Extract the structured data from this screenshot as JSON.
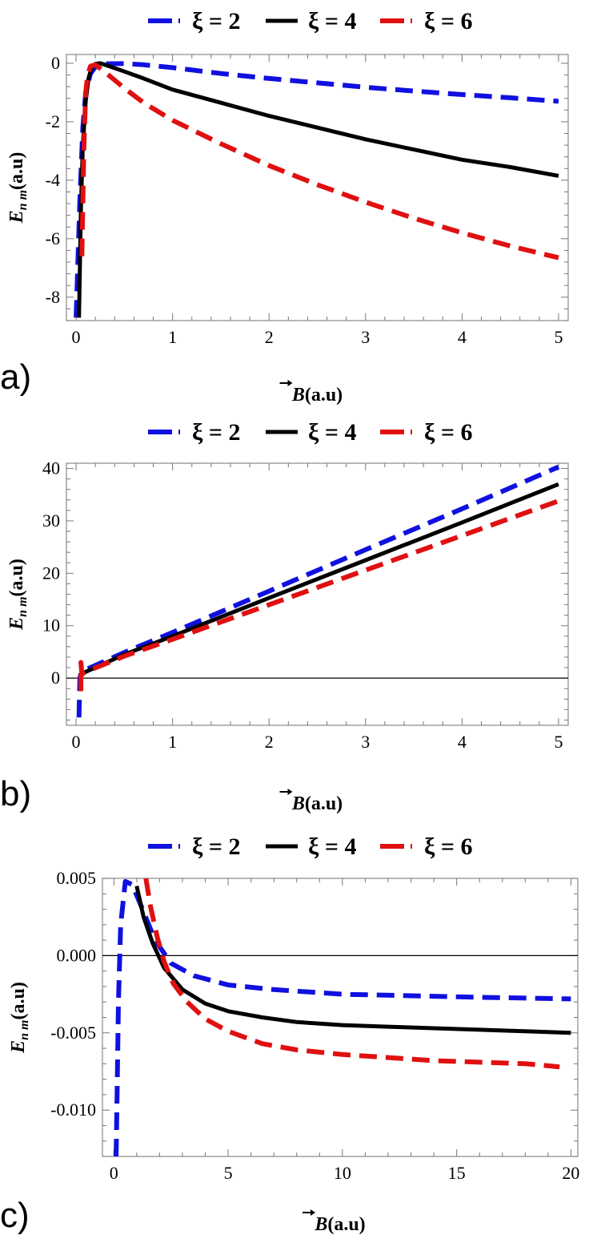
{
  "chart_data": [
    {
      "panel": "a)",
      "type": "line",
      "xlabel": "B(a.u)",
      "xlabel_parts": {
        "main": "B",
        "paren": "(a.u)"
      },
      "ylabel": "Enm(a.u)",
      "ylabel_parts": {
        "main": "E",
        "sub": "n m",
        "paren": "(a.u)"
      },
      "xlim": [
        -0.1,
        5.1
      ],
      "ylim": [
        -8.8,
        0.3
      ],
      "x_ticks": [
        0,
        1,
        2,
        3,
        4,
        5
      ],
      "y_ticks": [
        0,
        -2,
        -4,
        -6,
        -8
      ],
      "x_tick_labels": [
        "0",
        "1",
        "2",
        "3",
        "4",
        "5"
      ],
      "y_tick_labels": [
        "0",
        "-2",
        "-4",
        "-6",
        "-8"
      ],
      "zero_line": false,
      "legend": "top-center",
      "series": [
        {
          "name": "ξ = 2",
          "color": "#1010e0",
          "dash": "dashed",
          "x": [
            0.0,
            0.04,
            0.07,
            0.1,
            0.15,
            0.2,
            0.3,
            0.5,
            0.7,
            1.0,
            1.5,
            2.0,
            2.5,
            3.0,
            3.5,
            4.0,
            4.5,
            5.0
          ],
          "y": [
            -8.7,
            -4.6,
            -2.2,
            -1.0,
            -0.35,
            -0.12,
            -0.02,
            -0.01,
            -0.05,
            -0.15,
            -0.35,
            -0.52,
            -0.67,
            -0.82,
            -0.95,
            -1.07,
            -1.18,
            -1.3
          ]
        },
        {
          "name": "ξ = 4",
          "color": "#000000",
          "dash": "solid",
          "x": [
            0.03,
            0.05,
            0.07,
            0.1,
            0.13,
            0.16,
            0.2,
            0.25,
            0.3,
            0.5,
            0.7,
            1.0,
            1.5,
            2.0,
            2.5,
            3.0,
            3.5,
            4.0,
            4.5,
            5.0
          ],
          "y": [
            -8.7,
            -5.0,
            -2.8,
            -1.3,
            -0.5,
            -0.15,
            -0.02,
            0.0,
            -0.05,
            -0.28,
            -0.52,
            -0.9,
            -1.35,
            -1.8,
            -2.2,
            -2.6,
            -2.95,
            -3.3,
            -3.55,
            -3.85
          ]
        },
        {
          "name": "ξ = 6",
          "color": "#e01010",
          "dash": "dashed",
          "x": [
            0.06,
            0.08,
            0.1,
            0.12,
            0.15,
            0.2,
            0.3,
            0.5,
            0.7,
            1.0,
            1.5,
            2.0,
            2.5,
            3.0,
            3.5,
            4.0,
            4.5,
            5.0
          ],
          "y": [
            -6.6,
            -3.0,
            -1.0,
            -0.4,
            -0.1,
            -0.05,
            -0.3,
            -0.85,
            -1.35,
            -1.95,
            -2.75,
            -3.5,
            -4.15,
            -4.75,
            -5.3,
            -5.8,
            -6.25,
            -6.65
          ]
        }
      ]
    },
    {
      "panel": "b)",
      "type": "line",
      "xlabel": "B(a.u)",
      "xlabel_parts": {
        "main": "B",
        "paren": "(a.u)"
      },
      "ylabel": "Enm(a.u)",
      "ylabel_parts": {
        "main": "E",
        "sub": "n m",
        "paren": "(a.u)"
      },
      "xlim": [
        -0.1,
        5.1
      ],
      "ylim": [
        -9,
        41
      ],
      "x_ticks": [
        0,
        1,
        2,
        3,
        4,
        5
      ],
      "y_ticks": [
        0,
        10,
        20,
        30,
        40
      ],
      "x_tick_labels": [
        "0",
        "1",
        "2",
        "3",
        "4",
        "5"
      ],
      "y_tick_labels": [
        "0",
        "10",
        "20",
        "30",
        "40"
      ],
      "zero_line": true,
      "legend": "top-center",
      "series": [
        {
          "name": "ξ = 2",
          "color": "#1010e0",
          "dash": "dashed",
          "x": [
            0.03,
            0.035,
            0.04,
            0.05,
            0.1,
            0.5,
            1.0,
            2.0,
            3.0,
            4.0,
            5.0
          ],
          "y": [
            -7.5,
            -3.0,
            0.0,
            1.0,
            1.6,
            4.9,
            8.7,
            16.6,
            24.5,
            32.3,
            40.3
          ]
        },
        {
          "name": "ξ = 4",
          "color": "#000000",
          "dash": "solid",
          "x": [
            0.05,
            0.1,
            0.5,
            1.0,
            2.0,
            3.0,
            4.0,
            5.0
          ],
          "y": [
            0.5,
            1.2,
            4.5,
            8.0,
            15.3,
            22.5,
            29.7,
            37.0
          ]
        },
        {
          "name": "ξ = 6",
          "color": "#e01010",
          "dash": "dashed",
          "x": [
            0.05,
            0.05,
            0.06,
            0.1,
            0.5,
            1.0,
            2.0,
            3.0,
            4.0,
            5.0
          ],
          "y": [
            -2.5,
            3.0,
            0.8,
            1.2,
            4.2,
            7.4,
            14.0,
            20.6,
            27.2,
            33.8
          ]
        }
      ]
    },
    {
      "panel": "c)",
      "type": "line",
      "xlabel": "B(a.u)",
      "xlabel_parts": {
        "main": "B",
        "paren": "(a.u)"
      },
      "ylabel": "Enm(a.u)",
      "ylabel_parts": {
        "main": "E",
        "sub": "n m",
        "paren": "(a.u)"
      },
      "xlim": [
        -0.5,
        20.3
      ],
      "ylim": [
        -0.013,
        0.005
      ],
      "x_ticks": [
        0,
        5,
        10,
        15,
        20
      ],
      "y_ticks": [
        0.005,
        0.0,
        -0.005,
        -0.01
      ],
      "x_tick_labels": [
        "0",
        "5",
        "10",
        "15",
        "20"
      ],
      "y_tick_labels": [
        "0.005",
        "0.000",
        "-0.005",
        "-0.010"
      ],
      "zero_line": true,
      "legend": "top-center",
      "series": [
        {
          "name": "ξ = 2",
          "color": "#1010e0",
          "dash": "dashed",
          "x": [
            0.1,
            0.15,
            0.2,
            0.3,
            0.5,
            0.8,
            1.2,
            1.8,
            2.5,
            3.5,
            5.0,
            7.0,
            10.0,
            13.0,
            16.0,
            20.0
          ],
          "y": [
            -0.013,
            -0.008,
            -0.003,
            0.002,
            0.0048,
            0.0046,
            0.0032,
            0.001,
            -0.0005,
            -0.0013,
            -0.0019,
            -0.0022,
            -0.0025,
            -0.0026,
            -0.0027,
            -0.0028
          ]
        },
        {
          "name": "ξ = 4",
          "color": "#000000",
          "dash": "solid",
          "x": [
            1.0,
            1.3,
            1.7,
            2.2,
            3.0,
            4.0,
            5.0,
            6.5,
            8.0,
            10.0,
            12.0,
            14.0,
            16.0,
            18.0,
            20.0
          ],
          "y": [
            0.0045,
            0.0025,
            0.0008,
            -0.0008,
            -0.0022,
            -0.0031,
            -0.0036,
            -0.004,
            -0.0043,
            -0.0045,
            -0.0046,
            -0.0047,
            -0.0048,
            -0.0049,
            -0.005
          ]
        },
        {
          "name": "ξ = 6",
          "color": "#e01010",
          "dash": "dashed",
          "x": [
            1.4,
            1.6,
            1.9,
            2.2,
            2.6,
            3.2,
            4.0,
            5.0,
            6.5,
            8.0,
            10.0,
            12.0,
            14.0,
            16.0,
            18.0,
            19.5
          ],
          "y": [
            0.005,
            0.0032,
            0.0012,
            -0.0004,
            -0.0018,
            -0.003,
            -0.0041,
            -0.0049,
            -0.0057,
            -0.0061,
            -0.0064,
            -0.0066,
            -0.0068,
            -0.0069,
            -0.007,
            -0.0072
          ]
        }
      ]
    }
  ]
}
